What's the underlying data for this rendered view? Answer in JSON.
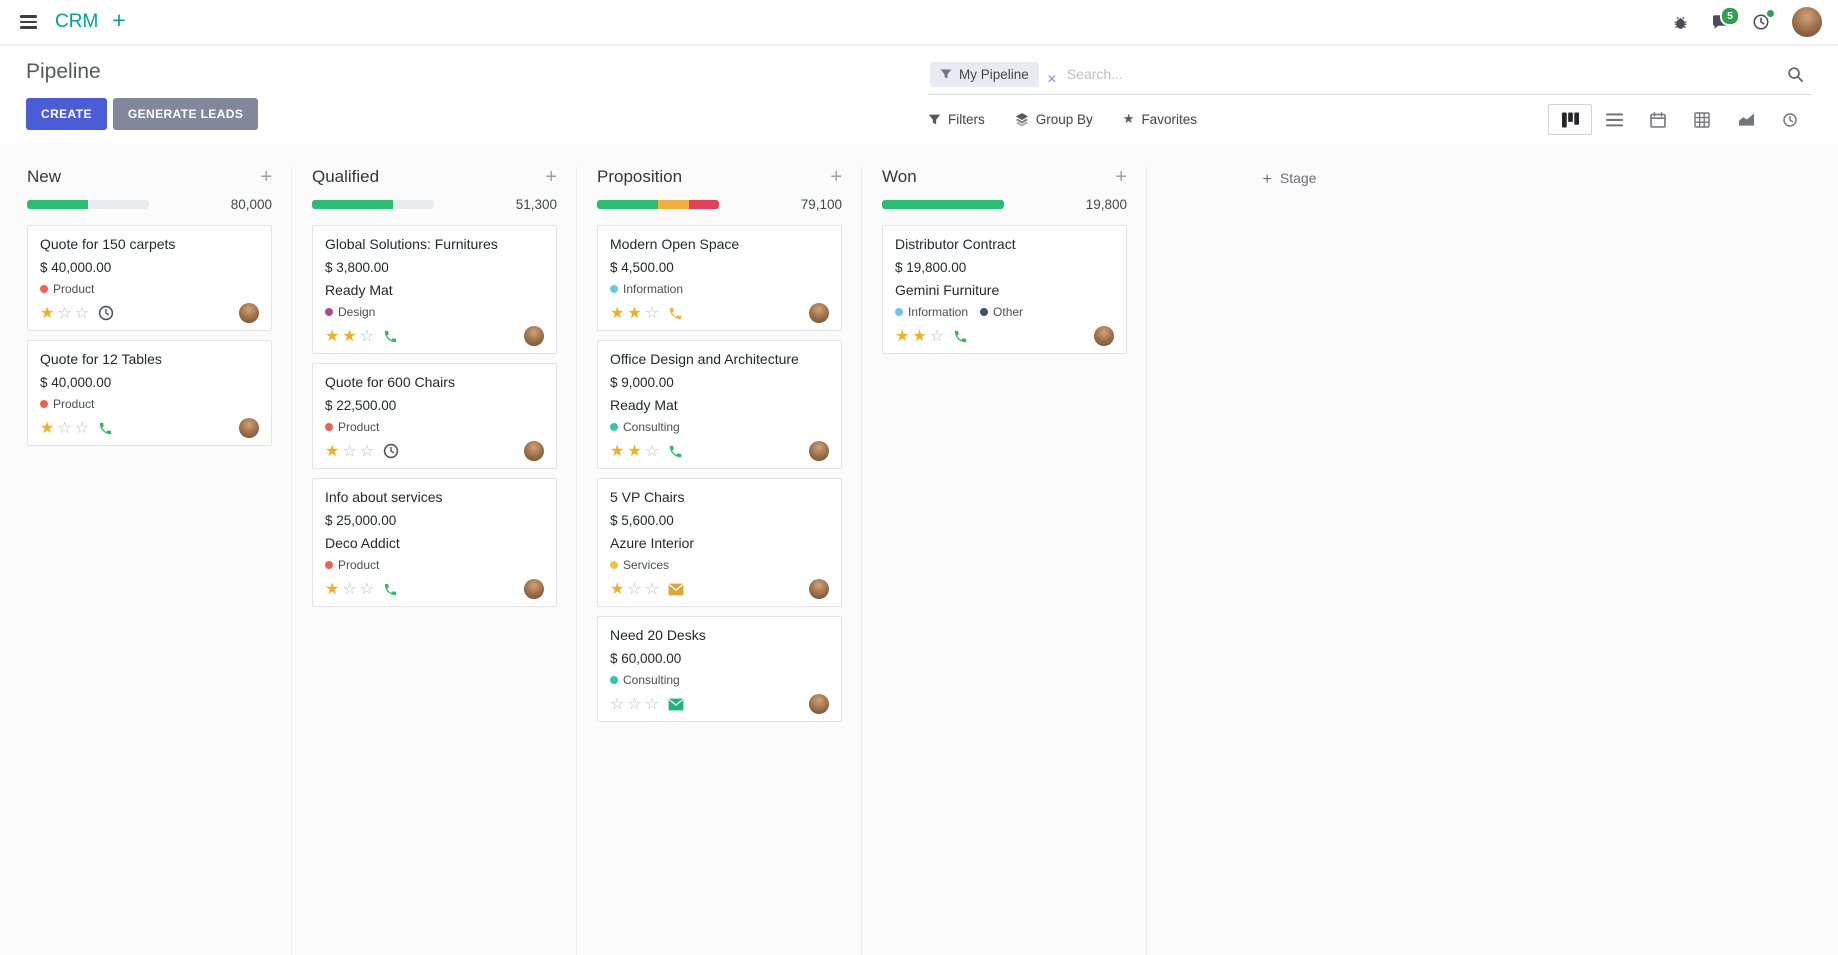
{
  "navbar": {
    "app_name": "CRM",
    "messages_badge": "5"
  },
  "control_panel": {
    "page_title": "Pipeline",
    "create_label": "CREATE",
    "generate_leads_label": "GENERATE LEADS",
    "filters_label": "Filters",
    "group_by_label": "Group By",
    "favorites_label": "Favorites",
    "search": {
      "facet_label": "My Pipeline",
      "facet_remove": "✕",
      "placeholder": "Search..."
    },
    "view_switcher": {
      "views": [
        "kanban",
        "list",
        "calendar",
        "pivot",
        "graph",
        "activity"
      ],
      "active": "kanban"
    }
  },
  "board": {
    "add_stage_label": "Stage",
    "progress_empty_color": "#e9ecef",
    "columns": [
      {
        "name": "New",
        "total": "80,000",
        "progress": [
          {
            "color": "#2dbd71",
            "pct": 50
          }
        ],
        "cards": [
          {
            "title": "Quote for 150 carpets",
            "amount": "$ 40,000.00",
            "tags": [
              {
                "label": "Product",
                "color": "#f06050"
              }
            ],
            "stars": 1,
            "activity": {
              "icon": "clock",
              "color": "#50555c"
            }
          },
          {
            "title": "Quote for 12 Tables",
            "amount": "$ 40,000.00",
            "tags": [
              {
                "label": "Product",
                "color": "#f06050"
              }
            ],
            "stars": 1,
            "activity": {
              "icon": "phone",
              "color": "#2dbb62"
            }
          }
        ]
      },
      {
        "name": "Qualified",
        "total": "51,300",
        "progress": [
          {
            "color": "#2dbd71",
            "pct": 66
          }
        ],
        "cards": [
          {
            "title": "Global Solutions: Furnitures",
            "amount": "$ 3,800.00",
            "partner": "Ready Mat",
            "tags": [
              {
                "label": "Design",
                "color": "#a8499b"
              }
            ],
            "stars": 2,
            "activity": {
              "icon": "phone",
              "color": "#2dbb62"
            }
          },
          {
            "title": "Quote for 600 Chairs",
            "amount": "$ 22,500.00",
            "tags": [
              {
                "label": "Product",
                "color": "#f06050"
              }
            ],
            "stars": 1,
            "activity": {
              "icon": "clock",
              "color": "#50555c"
            }
          },
          {
            "title": "Info about services",
            "amount": "$ 25,000.00",
            "partner": "Deco Addict",
            "tags": [
              {
                "label": "Product",
                "color": "#f06050"
              }
            ],
            "stars": 1,
            "activity": {
              "icon": "phone",
              "color": "#2dbb62"
            }
          }
        ]
      },
      {
        "name": "Proposition",
        "total": "79,100",
        "progress": [
          {
            "color": "#2dbd71",
            "pct": 50
          },
          {
            "color": "#efb041",
            "pct": 25
          },
          {
            "color": "#df4257",
            "pct": 25
          }
        ],
        "cards": [
          {
            "title": "Modern Open Space",
            "amount": "$ 4,500.00",
            "tags": [
              {
                "label": "Information",
                "color": "#6fc4e8"
              }
            ],
            "stars": 2,
            "activity": {
              "icon": "phone",
              "color": "#f0b041"
            }
          },
          {
            "title": "Office Design and Architecture",
            "amount": "$ 9,000.00",
            "partner": "Ready Mat",
            "tags": [
              {
                "label": "Consulting",
                "color": "#36c3ae"
              }
            ],
            "stars": 2,
            "activity": {
              "icon": "phone",
              "color": "#2dbb62"
            }
          },
          {
            "title": "5 VP Chairs",
            "amount": "$ 5,600.00",
            "partner": "Azure Interior",
            "tags": [
              {
                "label": "Services",
                "color": "#f0c445"
              }
            ],
            "stars": 1,
            "activity": {
              "icon": "mail",
              "color": "#dfa43a"
            }
          },
          {
            "title": "Need 20 Desks",
            "amount": "$ 60,000.00",
            "tags": [
              {
                "label": "Consulting",
                "color": "#36c3ae"
              }
            ],
            "stars": 0,
            "activity": {
              "icon": "mail",
              "color": "#1cb579"
            }
          }
        ]
      },
      {
        "name": "Won",
        "total": "19,800",
        "progress": [
          {
            "color": "#2dbd71",
            "pct": 100
          }
        ],
        "cards": [
          {
            "title": "Distributor Contract",
            "amount": "$ 19,800.00",
            "partner": "Gemini Furniture",
            "tags": [
              {
                "label": "Information",
                "color": "#6fc4e8"
              },
              {
                "label": "Other",
                "color": "#44505c"
              }
            ],
            "stars": 2,
            "activity": {
              "icon": "phone",
              "color": "#2dbb62"
            }
          }
        ]
      }
    ]
  }
}
